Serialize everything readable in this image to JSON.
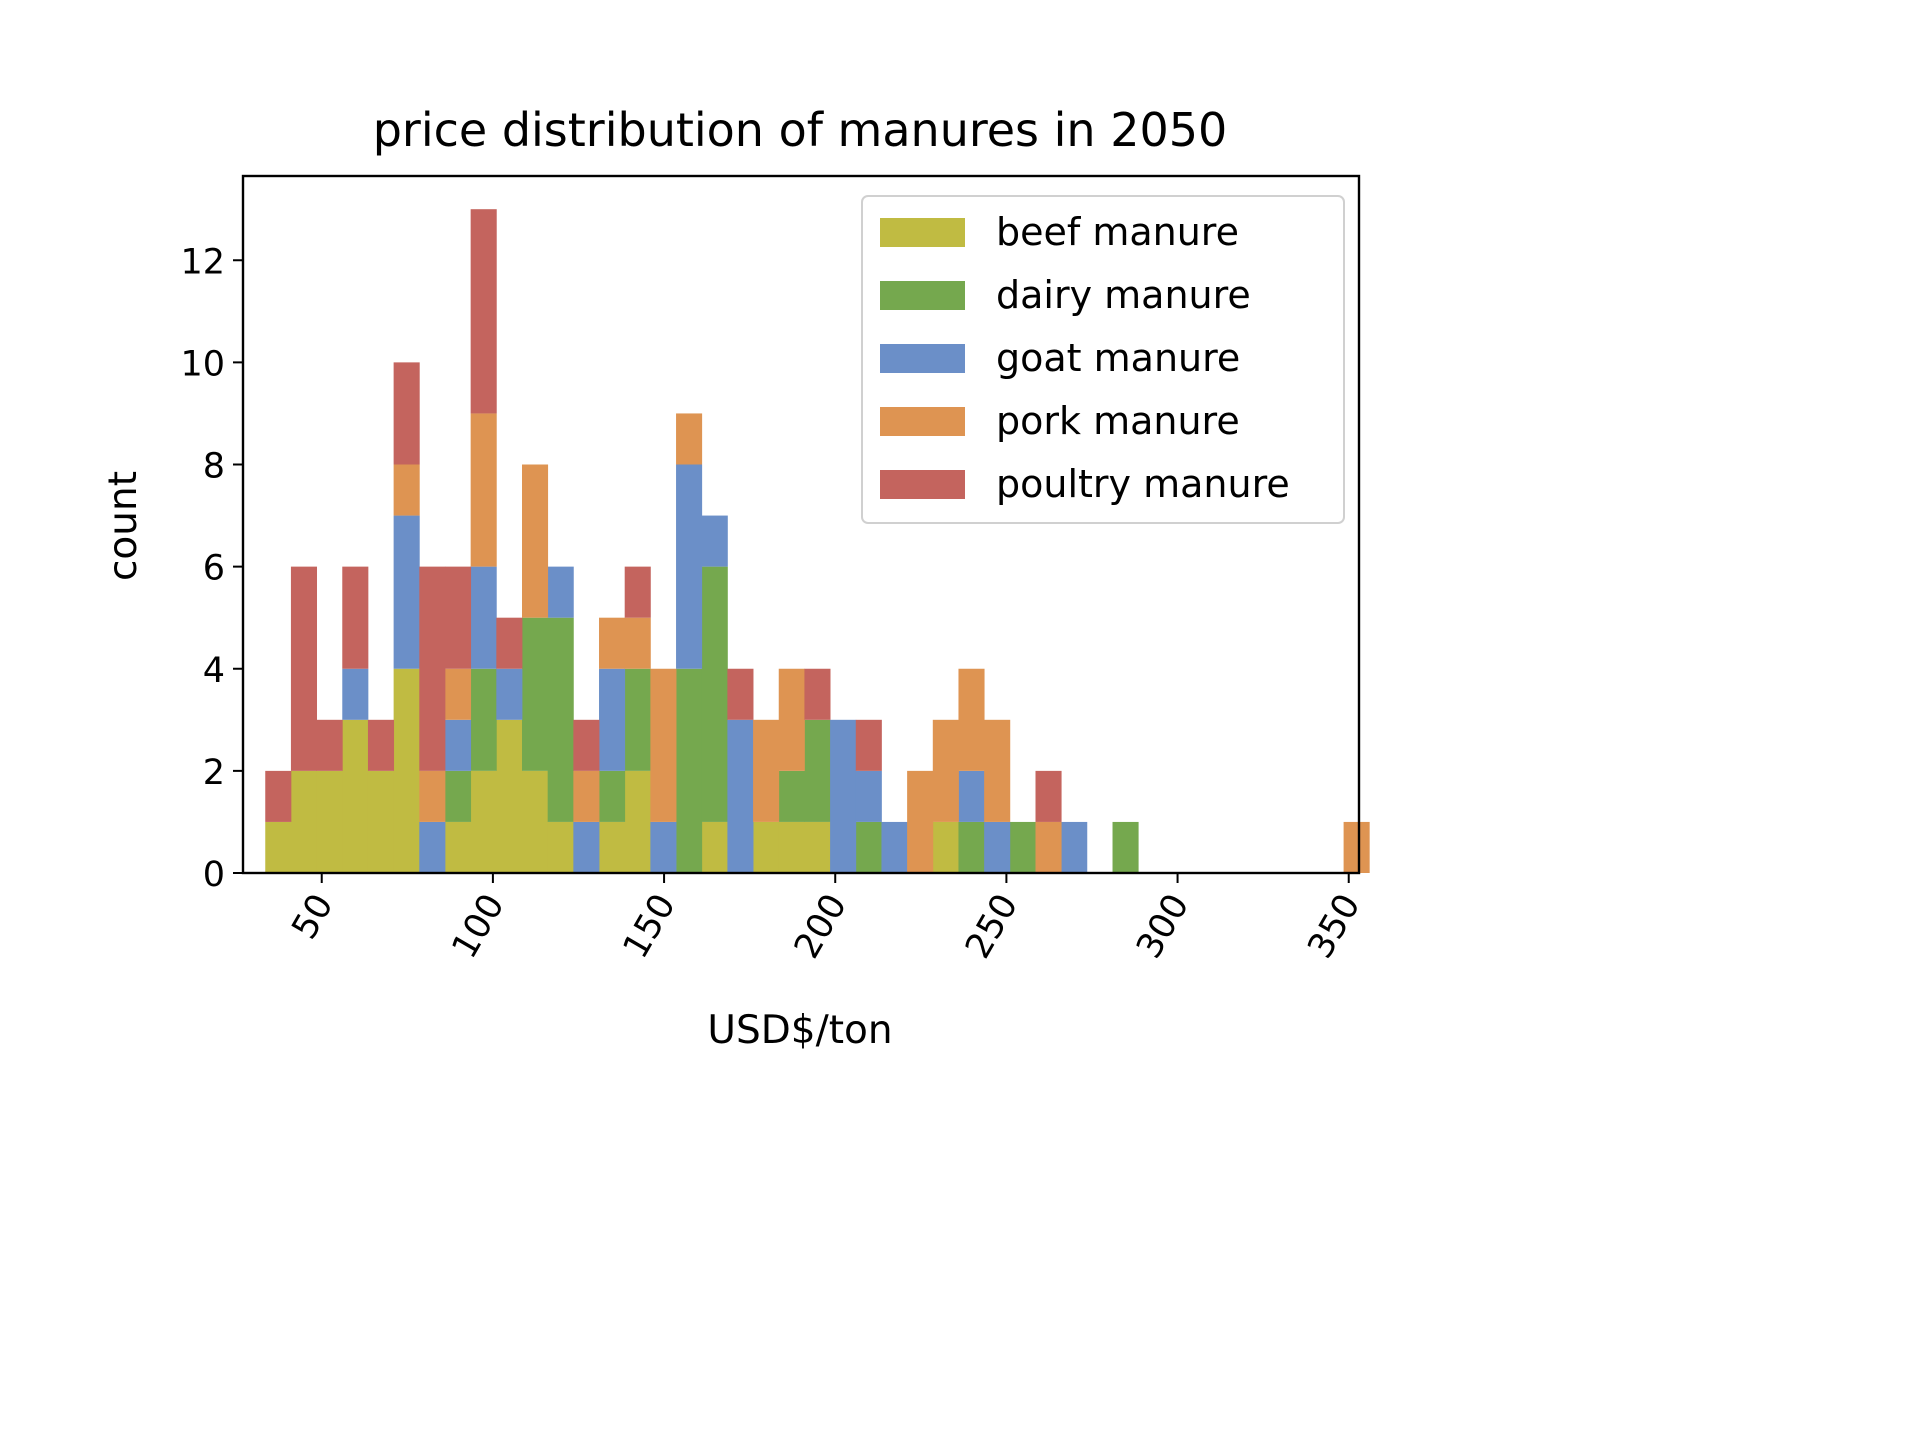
{
  "chart_data": {
    "type": "bar",
    "stacked": true,
    "title": "price distribution of manures in 2050",
    "xlabel": "USD$/ton",
    "ylabel": "count",
    "xlim": [
      27,
      353
    ],
    "ylim": [
      0,
      13.65
    ],
    "bin_start": 33.5,
    "bin_width": 7.5,
    "xticks": [
      50,
      100,
      150,
      200,
      250,
      300,
      350
    ],
    "yticks": [
      0,
      2,
      4,
      6,
      8,
      10,
      12
    ],
    "legend_position": "top-right",
    "series": [
      {
        "name": "beef manure",
        "color": "#c0bb42",
        "values": [
          1,
          2,
          2,
          3,
          2,
          4,
          0,
          1,
          2,
          3,
          2,
          1,
          0,
          1,
          2,
          0,
          0,
          1,
          0,
          1,
          1,
          1,
          0,
          0,
          0,
          0,
          1,
          0,
          0,
          0,
          0,
          0,
          0,
          0,
          0,
          0,
          0,
          0,
          0,
          0,
          0,
          0,
          0
        ]
      },
      {
        "name": "dairy manure",
        "color": "#75a84e",
        "values": [
          0,
          0,
          0,
          0,
          0,
          0,
          0,
          1,
          2,
          0,
          3,
          4,
          0,
          1,
          2,
          0,
          4,
          5,
          0,
          0,
          1,
          2,
          0,
          1,
          0,
          0,
          0,
          1,
          0,
          1,
          0,
          0,
          0,
          1,
          0,
          0,
          0,
          0,
          0,
          0,
          0,
          0,
          0
        ]
      },
      {
        "name": "goat manure",
        "color": "#6b8fc8",
        "values": [
          0,
          0,
          0,
          1,
          0,
          3,
          1,
          1,
          2,
          1,
          0,
          1,
          1,
          2,
          0,
          1,
          4,
          1,
          3,
          0,
          0,
          0,
          3,
          1,
          1,
          0,
          0,
          1,
          1,
          0,
          0,
          1,
          0,
          0,
          0,
          0,
          0,
          0,
          0,
          0,
          0,
          0,
          0
        ]
      },
      {
        "name": "pork manure",
        "color": "#de9452",
        "values": [
          0,
          0,
          0,
          0,
          0,
          1,
          1,
          1,
          3,
          0,
          3,
          0,
          1,
          1,
          1,
          3,
          1,
          0,
          0,
          2,
          2,
          0,
          0,
          0,
          0,
          2,
          2,
          2,
          2,
          0,
          1,
          0,
          0,
          0,
          0,
          0,
          0,
          0,
          0,
          0,
          0,
          0,
          1
        ]
      },
      {
        "name": "poultry manure",
        "color": "#c4645e",
        "values": [
          1,
          4,
          1,
          2,
          1,
          2,
          4,
          2,
          4,
          1,
          0,
          0,
          1,
          0,
          1,
          0,
          0,
          0,
          1,
          0,
          0,
          1,
          0,
          1,
          0,
          0,
          0,
          0,
          0,
          0,
          1,
          0,
          0,
          0,
          0,
          0,
          0,
          0,
          0,
          0,
          0,
          0,
          0
        ]
      }
    ]
  }
}
